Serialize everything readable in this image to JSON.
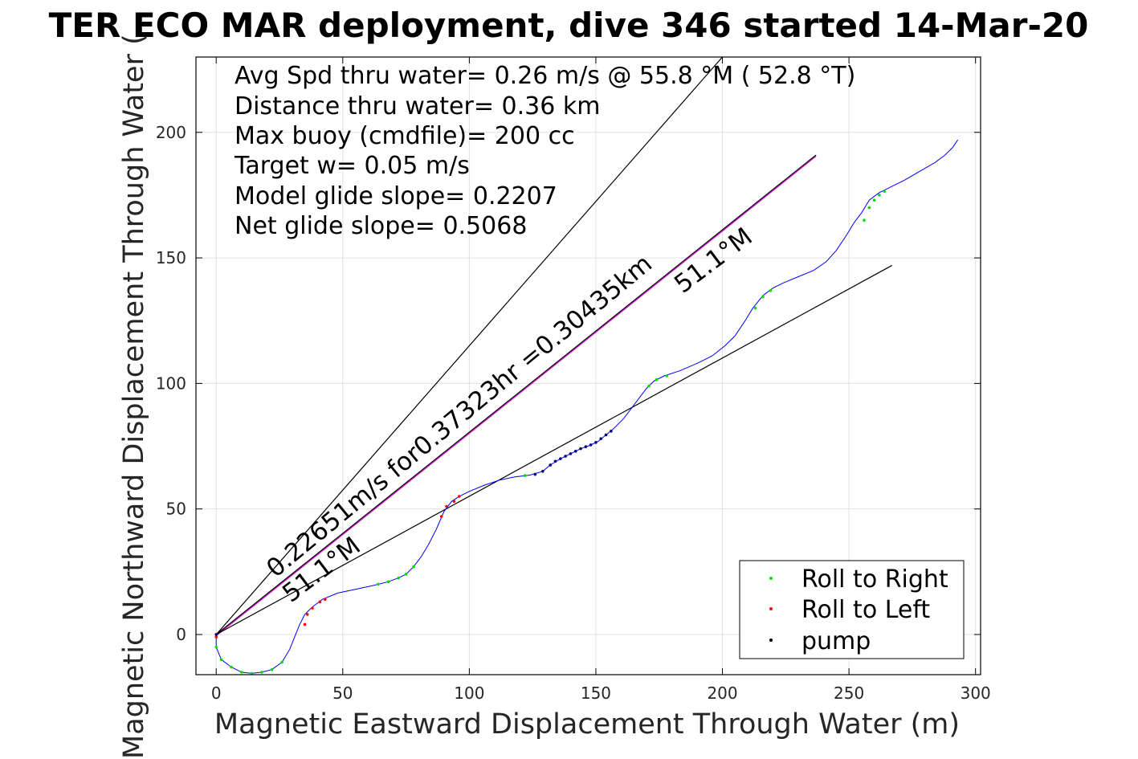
{
  "chart_data": {
    "type": "line",
    "title": "TER ECO MAR deployment, dive 346 started 14-Mar-20",
    "xlabel": "Magnetic Eastward Displacement Through Water (m)",
    "ylabel": "Magnetic Northward Displacement Through Water (",
    "xlim": [
      -8,
      302
    ],
    "ylim": [
      -16,
      230
    ],
    "xticks": [
      0,
      50,
      100,
      150,
      200,
      250,
      300
    ],
    "yticks": [
      0,
      50,
      100,
      150,
      200
    ],
    "grid": true,
    "legend_position": "bottom-right",
    "colors": {
      "track": "#0000ff",
      "roll_right": "#00dd00",
      "roll_left": "#ff0000",
      "pump": "#000080",
      "reference_lines": "#000000",
      "net_line": "#cc00cc",
      "grid": "#e0e0e0"
    },
    "annotations": [
      "Avg Spd thru water=  0.26 m/s @  55.8 °M ( 52.8 °T)",
      "Distance thru water=  0.36 km",
      "Max buoy (cmdfile)= 200 cc",
      "Target w= 0.05 m/s",
      "Model glide slope= 0.2207",
      "Net glide slope= 0.5068"
    ],
    "line_labels": {
      "net_track": "0.22651m/s for0.37323hr =0.30435km",
      "upper_heading": "51.1°M",
      "lower_heading": "51.1°M"
    },
    "reference_lines": [
      {
        "name": "steep",
        "x": [
          0,
          200
        ],
        "y": [
          0,
          230
        ]
      },
      {
        "name": "net",
        "x": [
          0,
          237
        ],
        "y": [
          0,
          191
        ]
      },
      {
        "name": "shallow",
        "x": [
          0,
          267
        ],
        "y": [
          0,
          147
        ]
      }
    ],
    "series": [
      {
        "name": "track",
        "points": [
          [
            0,
            0
          ],
          [
            0,
            -5
          ],
          [
            2,
            -10
          ],
          [
            6,
            -13
          ],
          [
            10,
            -15
          ],
          [
            14,
            -15.5
          ],
          [
            18,
            -15
          ],
          [
            22,
            -14
          ],
          [
            26,
            -11
          ],
          [
            29,
            -6
          ],
          [
            31,
            -1
          ],
          [
            33,
            4
          ],
          [
            35,
            8
          ],
          [
            38,
            11
          ],
          [
            42,
            14
          ],
          [
            48,
            16.5
          ],
          [
            55,
            18
          ],
          [
            62,
            19.5
          ],
          [
            68,
            21
          ],
          [
            72,
            22.5
          ],
          [
            75,
            24
          ],
          [
            78,
            27
          ],
          [
            81,
            31
          ],
          [
            84,
            36
          ],
          [
            87,
            42
          ],
          [
            90,
            49
          ],
          [
            93,
            53
          ],
          [
            96,
            55
          ],
          [
            100,
            57
          ],
          [
            106,
            59.5
          ],
          [
            112,
            61.5
          ],
          [
            118,
            62.8
          ],
          [
            124,
            63.5
          ],
          [
            129,
            65
          ],
          [
            132,
            67.5
          ],
          [
            136,
            70
          ],
          [
            140,
            72
          ],
          [
            144,
            74
          ],
          [
            148,
            75.5
          ],
          [
            151,
            77
          ],
          [
            154,
            79.5
          ],
          [
            157,
            82
          ],
          [
            161,
            86
          ],
          [
            164,
            90
          ],
          [
            167,
            94
          ],
          [
            170,
            98
          ],
          [
            173,
            101
          ],
          [
            177,
            103
          ],
          [
            183,
            105
          ],
          [
            190,
            108
          ],
          [
            196,
            111
          ],
          [
            201,
            115
          ],
          [
            205,
            119
          ],
          [
            209,
            125
          ],
          [
            212,
            130
          ],
          [
            216,
            135
          ],
          [
            220,
            138
          ],
          [
            224,
            140
          ],
          [
            230,
            142.5
          ],
          [
            236,
            145
          ],
          [
            241,
            148.5
          ],
          [
            245,
            153
          ],
          [
            249,
            159
          ],
          [
            252,
            164
          ],
          [
            255,
            168
          ],
          [
            258,
            173
          ],
          [
            262,
            176
          ],
          [
            266,
            178
          ],
          [
            272,
            181
          ],
          [
            278,
            184.5
          ],
          [
            284,
            188
          ],
          [
            288,
            191
          ],
          [
            291,
            194
          ],
          [
            293,
            197
          ]
        ]
      },
      {
        "name": "Roll to Right",
        "points": [
          [
            0,
            -5
          ],
          [
            2,
            -10
          ],
          [
            6,
            -13
          ],
          [
            10,
            -15
          ],
          [
            14,
            -15.5
          ],
          [
            18,
            -15
          ],
          [
            22,
            -14
          ],
          [
            26,
            -11
          ],
          [
            64,
            20
          ],
          [
            68,
            21
          ],
          [
            72,
            22.5
          ],
          [
            75,
            24
          ],
          [
            78,
            27
          ],
          [
            122,
            63.3
          ],
          [
            126,
            63.8
          ],
          [
            171,
            99
          ],
          [
            174,
            101.5
          ],
          [
            178,
            103
          ],
          [
            213,
            130
          ],
          [
            216,
            134.5
          ],
          [
            219,
            137
          ],
          [
            256,
            165
          ],
          [
            258,
            170
          ],
          [
            260,
            173
          ],
          [
            262,
            175
          ],
          [
            264,
            176.5
          ]
        ]
      },
      {
        "name": "Roll to Left",
        "points": [
          [
            0,
            -1
          ],
          [
            35,
            4
          ],
          [
            36,
            8
          ],
          [
            38,
            10.5
          ],
          [
            41,
            13
          ],
          [
            43,
            14
          ],
          [
            89,
            47
          ],
          [
            91,
            51
          ],
          [
            94,
            53
          ],
          [
            96,
            55
          ]
        ]
      },
      {
        "name": "pump",
        "points": [
          [
            0,
            0
          ],
          [
            126,
            63.8
          ],
          [
            129,
            65
          ],
          [
            132,
            67.5
          ],
          [
            134,
            69
          ],
          [
            136,
            70
          ],
          [
            138,
            71
          ],
          [
            140,
            72
          ],
          [
            142,
            73
          ],
          [
            144,
            74
          ],
          [
            146,
            74.8
          ],
          [
            148,
            75.5
          ],
          [
            150,
            76.5
          ],
          [
            152,
            78
          ],
          [
            154,
            79.5
          ],
          [
            156,
            81
          ]
        ]
      }
    ]
  }
}
